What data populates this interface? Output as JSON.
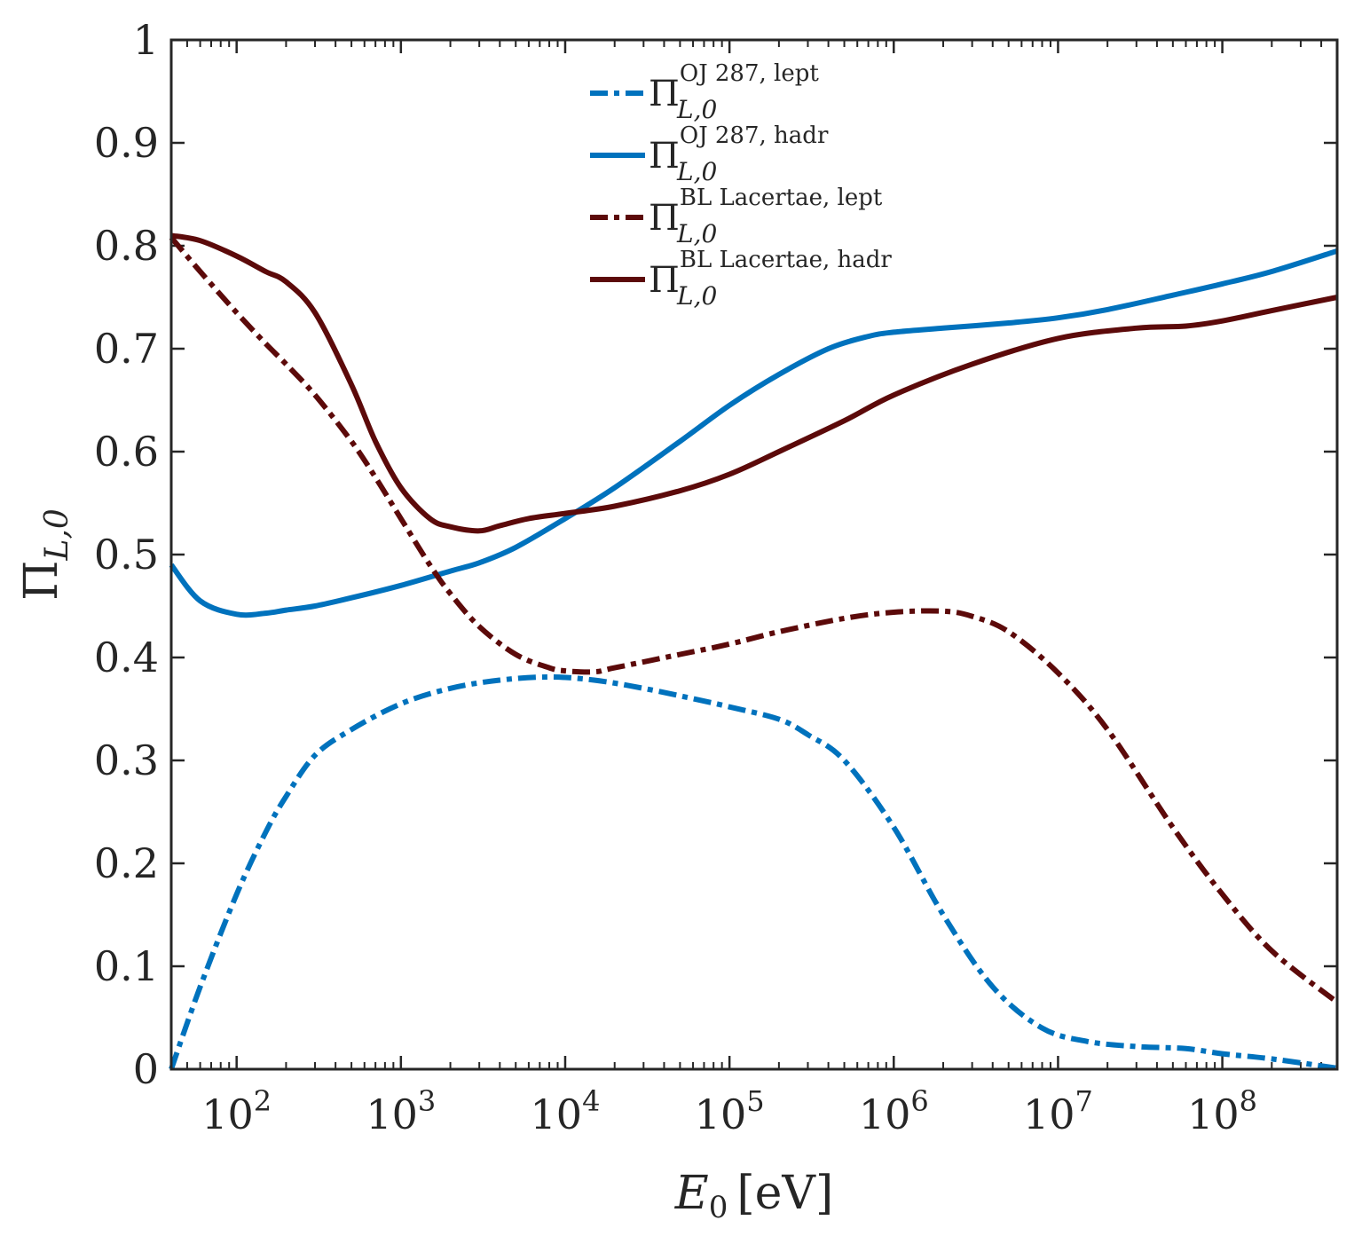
{
  "chart_data": {
    "type": "line",
    "title": "",
    "xlabel": {
      "symbol": "E",
      "sub": "0",
      "unit": "[eV]"
    },
    "ylabel": {
      "symbol": "Π",
      "sub": "L,0"
    },
    "xscale": "log",
    "xlim": [
      40,
      500000000
    ],
    "ylim": [
      0,
      1
    ],
    "grid": false,
    "legend_position": "top-center",
    "x_ticks": [
      {
        "value": 100,
        "base": "10",
        "exp": "2"
      },
      {
        "value": 1000,
        "base": "10",
        "exp": "3"
      },
      {
        "value": 10000,
        "base": "10",
        "exp": "4"
      },
      {
        "value": 100000,
        "base": "10",
        "exp": "5"
      },
      {
        "value": 1000000,
        "base": "10",
        "exp": "6"
      },
      {
        "value": 10000000,
        "base": "10",
        "exp": "7"
      },
      {
        "value": 100000000,
        "base": "10",
        "exp": "8"
      }
    ],
    "y_ticks": [
      {
        "value": 0,
        "label": "0"
      },
      {
        "value": 0.1,
        "label": "0.1"
      },
      {
        "value": 0.2,
        "label": "0.2"
      },
      {
        "value": 0.3,
        "label": "0.3"
      },
      {
        "value": 0.4,
        "label": "0.4"
      },
      {
        "value": 0.5,
        "label": "0.5"
      },
      {
        "value": 0.6,
        "label": "0.6"
      },
      {
        "value": 0.7,
        "label": "0.7"
      },
      {
        "value": 0.8,
        "label": "0.8"
      },
      {
        "value": 0.9,
        "label": "0.9"
      },
      {
        "value": 1,
        "label": "1"
      }
    ],
    "series": [
      {
        "name": "OJ 287, lept",
        "legend": {
          "symbol": "Π",
          "sup": "OJ 287, lept",
          "sub": "L,0"
        },
        "color": "#0072BD",
        "style": "dashdot",
        "x": [
          40,
          60,
          100,
          150,
          200,
          300,
          500,
          1000,
          2000,
          4000,
          8000,
          15000,
          30000,
          60000,
          100000,
          200000,
          300000,
          500000,
          1000000,
          2000000,
          4000000,
          8000000,
          15000000,
          30000000,
          60000000,
          100000000,
          200000000,
          500000000
        ],
        "y": [
          0.0,
          0.08,
          0.17,
          0.23,
          0.265,
          0.305,
          0.33,
          0.355,
          0.37,
          0.378,
          0.381,
          0.378,
          0.37,
          0.36,
          0.352,
          0.34,
          0.325,
          0.3,
          0.235,
          0.15,
          0.08,
          0.04,
          0.027,
          0.022,
          0.02,
          0.015,
          0.01,
          0.001
        ]
      },
      {
        "name": "OJ 287, hadr",
        "legend": {
          "symbol": "Π",
          "sup": "OJ 287, hadr",
          "sub": "L,0"
        },
        "color": "#0072BD",
        "style": "solid",
        "x": [
          40,
          60,
          100,
          150,
          200,
          300,
          500,
          1000,
          2000,
          3000,
          5000,
          10000,
          20000,
          50000,
          100000,
          200000,
          400000,
          700000,
          1000000,
          2000000,
          5000000,
          10000000,
          20000000,
          50000000,
          100000000,
          200000000,
          500000000
        ],
        "y": [
          0.49,
          0.455,
          0.442,
          0.443,
          0.446,
          0.45,
          0.458,
          0.47,
          0.484,
          0.492,
          0.507,
          0.535,
          0.565,
          0.61,
          0.645,
          0.675,
          0.7,
          0.712,
          0.716,
          0.72,
          0.725,
          0.73,
          0.738,
          0.752,
          0.763,
          0.775,
          0.795
        ]
      },
      {
        "name": "BL Lacertae, lept",
        "legend": {
          "symbol": "Π",
          "sup": "BL Lacertae, lept",
          "sub": "L,0"
        },
        "color": "#5C0A0A",
        "style": "dashdot",
        "x": [
          40,
          60,
          100,
          150,
          200,
          300,
          500,
          700,
          1000,
          1500,
          2000,
          3000,
          5000,
          8000,
          10000,
          15000,
          20000,
          50000,
          100000,
          200000,
          500000,
          1000000,
          2000000,
          3000000,
          5000000,
          10000000,
          20000000,
          50000000,
          100000000,
          200000000,
          500000000
        ],
        "y": [
          0.808,
          0.775,
          0.735,
          0.705,
          0.685,
          0.655,
          0.61,
          0.575,
          0.535,
          0.49,
          0.462,
          0.43,
          0.403,
          0.39,
          0.387,
          0.386,
          0.39,
          0.403,
          0.413,
          0.425,
          0.438,
          0.444,
          0.445,
          0.44,
          0.425,
          0.385,
          0.33,
          0.235,
          0.17,
          0.115,
          0.065
        ]
      },
      {
        "name": "BL Lacertae, hadr",
        "legend": {
          "symbol": "Π",
          "sup": "BL Lacertae, hadr",
          "sub": "L,0"
        },
        "color": "#5C0A0A",
        "style": "solid",
        "x": [
          40,
          60,
          100,
          150,
          200,
          300,
          500,
          700,
          1000,
          1500,
          2000,
          3000,
          4000,
          6000,
          10000,
          20000,
          50000,
          100000,
          200000,
          500000,
          1000000,
          3000000,
          10000000,
          30000000,
          60000000,
          100000000,
          200000000,
          500000000
        ],
        "y": [
          0.81,
          0.805,
          0.79,
          0.775,
          0.765,
          0.735,
          0.665,
          0.61,
          0.565,
          0.535,
          0.527,
          0.523,
          0.528,
          0.535,
          0.54,
          0.547,
          0.562,
          0.578,
          0.6,
          0.63,
          0.655,
          0.685,
          0.71,
          0.72,
          0.722,
          0.727,
          0.737,
          0.75
        ]
      }
    ]
  }
}
